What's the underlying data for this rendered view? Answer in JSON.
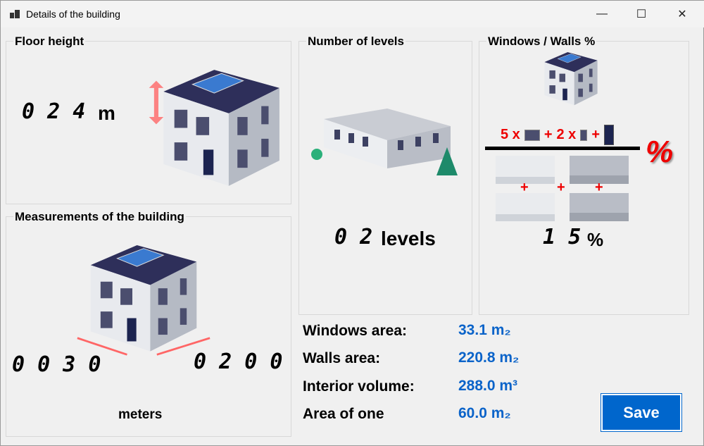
{
  "window": {
    "title": "Details of the building",
    "minimize": "—",
    "maximize": "☐",
    "close": "✕"
  },
  "floor_height": {
    "title": "Floor height",
    "value": "0 2 4",
    "unit": "m"
  },
  "measurements": {
    "title": "Measurements of the building",
    "width": "0 0 3 0",
    "length": "0 2 0 0",
    "unit": "meters"
  },
  "levels": {
    "title": "Number of levels",
    "value": "0 2",
    "unit": "levels"
  },
  "windows_walls": {
    "title": "Windows / Walls %",
    "formula_a": "5 x",
    "plus": "+",
    "formula_b": "2 x",
    "percent_sign": "%",
    "value": "1 5",
    "unit": "%"
  },
  "info": {
    "windows_area": {
      "label": "Windows area:",
      "value": "33.1 m₂"
    },
    "walls_area": {
      "label": "Walls area:",
      "value": "220.8 m₂"
    },
    "interior_volume": {
      "label": "Interior volume:",
      "value": "288.0 m³"
    },
    "area_of_one": {
      "label": "Area of one",
      "value": "60.0 m₂"
    }
  },
  "save_label": "Save",
  "colors": {
    "accent": "#0066cc",
    "value_text": "#0a63c9",
    "formula_red": "#e00000"
  }
}
